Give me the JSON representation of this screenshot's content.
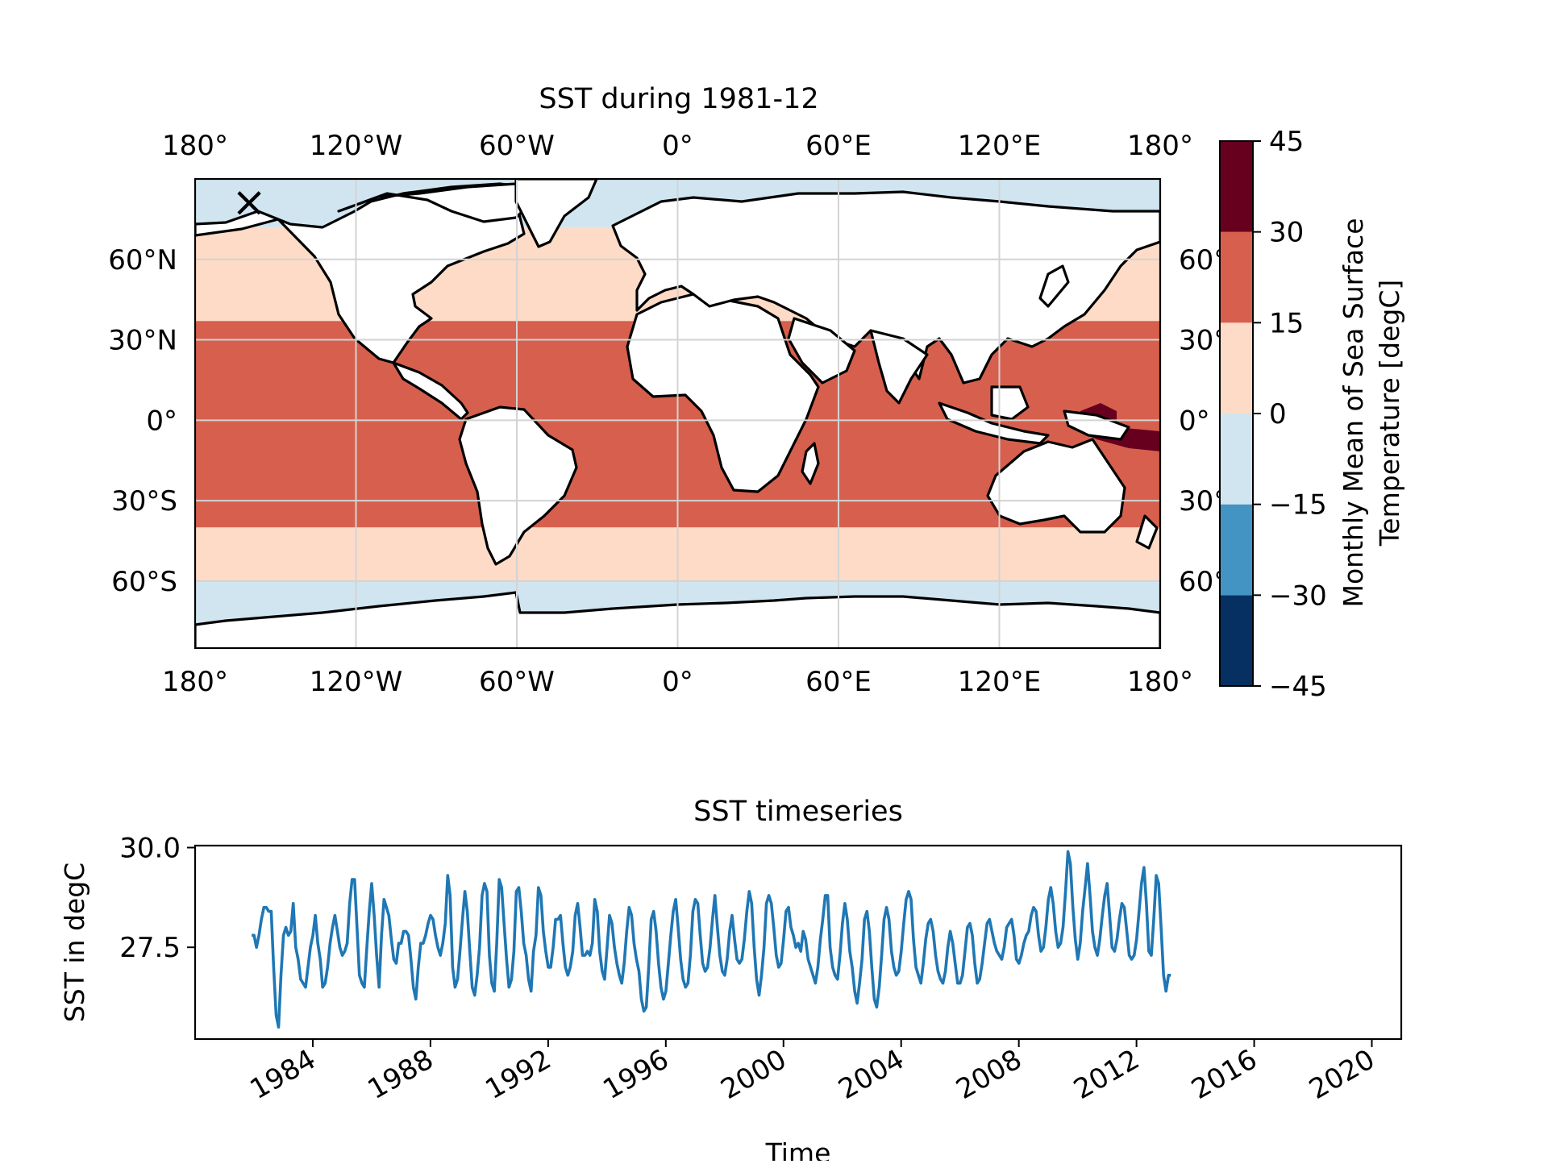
{
  "chart_data": [
    {
      "type": "heatmap",
      "title": "SST during 1981-12",
      "x_ticks": [
        "180°",
        "120°W",
        "60°W",
        "0°",
        "60°E",
        "120°E",
        "180°"
      ],
      "x_tick_values": [
        -180,
        -120,
        -60,
        0,
        60,
        120,
        180
      ],
      "y_ticks_left": [
        "60°N",
        "30°N",
        "0°",
        "30°S",
        "60°S"
      ],
      "y_ticks_right": [
        "60°",
        "30°",
        "0°",
        "30°",
        "60°"
      ],
      "y_tick_values": [
        60,
        30,
        0,
        -30,
        -60
      ],
      "xlim": [
        -180,
        180
      ],
      "ylim": [
        -85,
        90
      ],
      "grid": true,
      "marker": {
        "symbol": "×",
        "lon": -160,
        "lat": 80
      },
      "colorbar": {
        "label": "Monthly Mean of Sea Surface Temperature [degC]",
        "label_line1": "Monthly Mean of Sea Surface",
        "label_line2": "Temperature [degC]",
        "ticks": [
          "45",
          "30",
          "15",
          "0",
          "−15",
          "−30",
          "−45"
        ],
        "levels": [
          -45,
          -30,
          -15,
          0,
          15,
          30,
          45
        ],
        "colors": [
          "#053061",
          "#4393c3",
          "#d1e5f0",
          "#fddbc7",
          "#d6604d",
          "#67001f"
        ]
      },
      "bands": [
        {
          "lat_from": 90,
          "lat_to": 72,
          "bin": "-15 to 0"
        },
        {
          "lat_from": 72,
          "lat_to": 37,
          "bin": "0 to 15"
        },
        {
          "lat_from": 37,
          "lat_to": -40,
          "bin": "15 to 30"
        },
        {
          "lat_from": -40,
          "lat_to": -60,
          "bin": "0 to 15"
        },
        {
          "lat_from": -60,
          "lat_to": -85,
          "bin": "-15 to 0"
        }
      ],
      "colors": {
        "ocean_cold": "#d1e5f0",
        "ocean_cool": "#fddbc7",
        "ocean_warm": "#d6604d",
        "ocean_hot": "#67001f",
        "land": "#ffffff",
        "coast": "#000000",
        "grid": "#d3d3d3"
      }
    },
    {
      "type": "line",
      "title": "SST timeseries",
      "xlabel": "Time",
      "ylabel": "SST in degC",
      "x_ticks": [
        "1984",
        "1988",
        "1992",
        "1996",
        "2000",
        "2004",
        "2008",
        "2012",
        "2016",
        "2020"
      ],
      "x_tick_values": [
        1984,
        1988,
        1992,
        1996,
        2000,
        2004,
        2008,
        2012,
        2016,
        2020
      ],
      "y_ticks": [
        "30.0",
        "27.5"
      ],
      "y_tick_values": [
        30.0,
        27.5
      ],
      "xlim": [
        1980.0,
        2021.0
      ],
      "ylim": [
        25.2,
        30.05
      ],
      "color": "#1f77b4",
      "series": [
        {
          "x_start": 1981.92,
          "x_step": 0.0833333,
          "values": [
            27.8,
            27.8,
            27.5,
            27.8,
            28.2,
            28.5,
            28.5,
            28.4,
            28.4,
            27.0,
            25.8,
            25.5,
            26.8,
            27.8,
            28.0,
            27.8,
            27.9,
            28.6,
            27.5,
            27.2,
            26.7,
            26.6,
            26.5,
            27.0,
            27.5,
            27.8,
            28.3,
            27.6,
            27.2,
            26.5,
            26.6,
            27.0,
            27.6,
            28.0,
            28.3,
            27.9,
            27.5,
            27.3,
            27.4,
            27.6,
            28.6,
            29.2,
            29.2,
            28.0,
            26.8,
            26.6,
            26.5,
            27.5,
            28.4,
            29.1,
            28.3,
            27.3,
            26.5,
            27.8,
            28.7,
            28.5,
            28.3,
            27.7,
            27.2,
            27.1,
            27.6,
            27.6,
            27.9,
            27.9,
            27.8,
            27.2,
            26.5,
            26.2,
            27.0,
            27.6,
            27.6,
            27.8,
            28.1,
            28.3,
            28.2,
            27.8,
            27.5,
            27.3,
            27.6,
            28.1,
            29.3,
            28.8,
            27.0,
            26.5,
            26.7,
            27.4,
            28.2,
            28.9,
            28.4,
            27.4,
            26.5,
            26.3,
            26.8,
            27.5,
            28.8,
            29.1,
            28.9,
            27.3,
            26.6,
            26.4,
            27.6,
            29.2,
            29.0,
            28.1,
            27.2,
            26.5,
            26.7,
            27.4,
            28.9,
            29.0,
            28.4,
            27.6,
            27.3,
            26.7,
            26.4,
            27.4,
            27.8,
            29.0,
            28.8,
            27.9,
            27.4,
            27.0,
            27.0,
            27.5,
            28.2,
            28.2,
            28.3,
            27.6,
            27.0,
            26.8,
            27.0,
            27.4,
            28.3,
            28.6,
            28.0,
            27.3,
            27.3,
            27.4,
            27.3,
            27.6,
            28.7,
            28.4,
            27.4,
            26.9,
            26.7,
            27.5,
            28.3,
            28.1,
            27.5,
            27.1,
            26.8,
            26.6,
            27.1,
            27.9,
            28.5,
            28.3,
            27.6,
            27.2,
            26.9,
            26.2,
            25.9,
            26.0,
            27.0,
            28.2,
            28.4,
            27.9,
            27.1,
            26.5,
            26.2,
            26.4,
            27.1,
            27.8,
            28.4,
            28.7,
            28.0,
            27.2,
            26.7,
            26.5,
            26.6,
            27.3,
            28.4,
            28.7,
            28.6,
            27.8,
            27.1,
            26.9,
            27.0,
            27.5,
            28.2,
            28.8,
            28.0,
            27.3,
            26.9,
            26.8,
            27.2,
            27.9,
            28.3,
            27.7,
            27.2,
            27.1,
            27.2,
            27.7,
            28.4,
            28.9,
            28.6,
            27.5,
            26.7,
            26.3,
            26.8,
            27.5,
            28.6,
            28.8,
            28.6,
            28.0,
            27.3,
            27.0,
            27.1,
            27.7,
            28.4,
            28.5,
            28.0,
            27.8,
            27.5,
            27.6,
            27.4,
            27.9,
            27.7,
            27.2,
            27.0,
            26.8,
            26.6,
            27.0,
            27.7,
            28.2,
            28.8,
            28.8,
            27.5,
            27.0,
            26.8,
            26.7,
            27.3,
            28.1,
            28.6,
            28.2,
            27.4,
            27.0,
            26.4,
            26.1,
            26.6,
            27.2,
            28.2,
            28.4,
            27.9,
            27.0,
            26.2,
            26.0,
            26.5,
            27.3,
            28.2,
            28.5,
            28.2,
            27.4,
            27.0,
            26.8,
            26.9,
            27.4,
            28.1,
            28.7,
            28.9,
            28.7,
            27.7,
            27.0,
            26.8,
            26.6,
            27.1,
            27.7,
            28.1,
            28.2,
            27.9,
            27.3,
            26.9,
            26.7,
            26.6,
            26.9,
            27.5,
            27.9,
            27.6,
            27.1,
            26.6,
            26.6,
            26.8,
            27.4,
            28.0,
            28.1,
            27.8,
            27.1,
            26.6,
            26.7,
            27.1,
            27.6,
            28.1,
            28.2,
            27.9,
            27.6,
            27.4,
            27.3,
            27.2,
            27.5,
            28.0,
            28.1,
            28.2,
            27.8,
            27.2,
            27.1,
            27.3,
            27.6,
            27.8,
            27.9,
            28.3,
            28.5,
            28.4,
            27.8,
            27.4,
            27.5,
            28.0,
            28.7,
            29.0,
            28.6,
            27.9,
            27.5,
            27.6,
            28.0,
            28.9,
            29.9,
            29.6,
            28.5,
            27.7,
            27.2,
            27.6,
            28.4,
            29.0,
            29.6,
            28.8,
            27.9,
            27.5,
            27.3,
            27.7,
            28.3,
            28.8,
            29.1,
            28.3,
            27.5,
            27.4,
            27.7,
            28.2,
            28.6,
            28.5,
            27.9,
            27.3,
            27.2,
            27.3,
            27.7,
            28.4,
            29.1,
            29.5,
            28.6,
            27.4,
            27.3,
            28.2,
            29.3,
            29.1,
            28.0,
            26.8,
            26.4,
            26.8,
            26.8
          ]
        }
      ]
    }
  ]
}
